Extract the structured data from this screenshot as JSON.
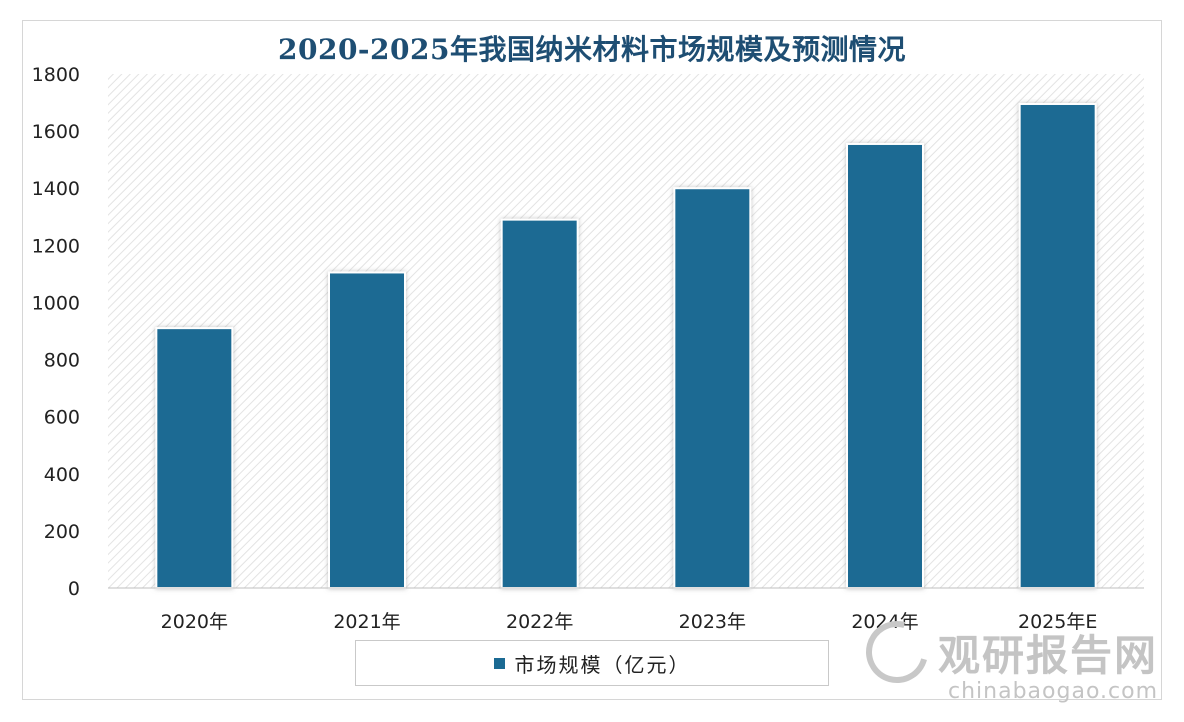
{
  "chart_data": {
    "type": "bar",
    "title": "2020-2025年我国纳米材料市场规模及预测情况",
    "categories": [
      "2020年",
      "2021年",
      "2022年",
      "2023年",
      "2024年",
      "2025年E"
    ],
    "series": [
      {
        "name": "市场规模（亿元）",
        "values": [
          910,
          1105,
          1290,
          1400,
          1555,
          1695
        ]
      }
    ],
    "ylim": [
      0,
      1800
    ],
    "yticks": [
      0,
      200,
      400,
      600,
      800,
      1000,
      1200,
      1400,
      1600,
      1800
    ],
    "xlabel": "",
    "ylabel": "",
    "grid": false,
    "legend_position": "bottom",
    "bar_color": "#1b6a93"
  },
  "legend": {
    "label": "市场规模（亿元）"
  },
  "watermark": {
    "brand": "观研报告网",
    "url": "chinabaogao.com"
  }
}
